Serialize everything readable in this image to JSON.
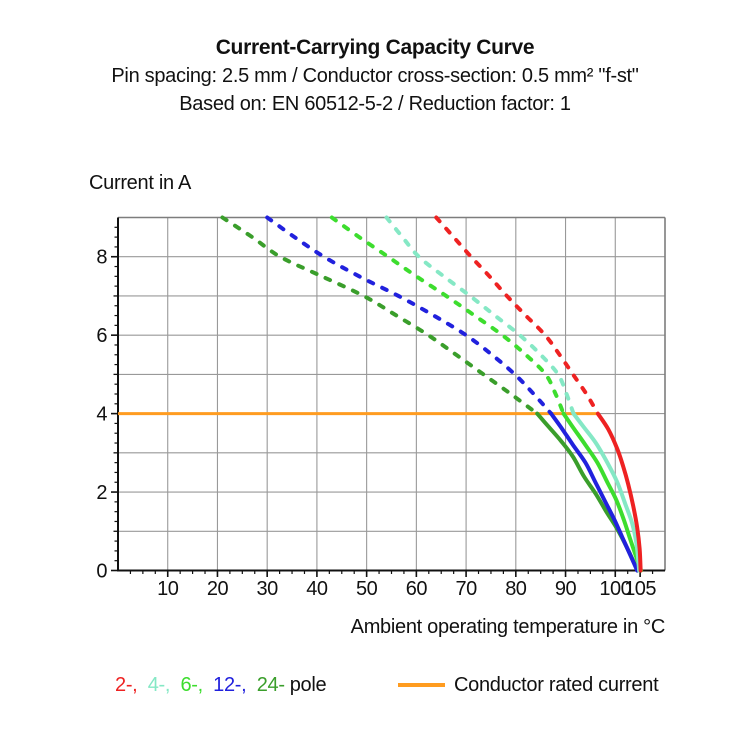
{
  "header": {
    "title": "Current-Carrying Capacity Curve",
    "subtitle1": "Pin spacing: 2.5 mm / Conductor cross-section: 0.5 mm² \"f-st\"",
    "subtitle2": "Based on: EN 60512-5-2 / Reduction factor: 1"
  },
  "axes": {
    "y_label": "Current in A",
    "x_label": "Ambient operating temperature in °C"
  },
  "legend": {
    "poles": [
      {
        "label": "2-,",
        "color": "#ee2222"
      },
      {
        "label": "4-,",
        "color": "#85e8c5"
      },
      {
        "label": "6-,",
        "color": "#3ddd2e"
      },
      {
        "label": "12-,",
        "color": "#2121dd"
      },
      {
        "label": "24-",
        "color": "#3a9e2b"
      }
    ],
    "poles_suffix": "pole",
    "rated_current_label": "Conductor rated current",
    "rated_current_color": "#ff9c20"
  },
  "chart_data": {
    "type": "line",
    "title": "Current-Carrying Capacity Curve",
    "xlabel": "Ambient operating temperature in °C",
    "ylabel": "Current in A",
    "x_range": [
      0,
      110
    ],
    "y_range": [
      0,
      9
    ],
    "grid": true,
    "x_gridlines": [
      10,
      20,
      30,
      40,
      50,
      60,
      70,
      80,
      90,
      100
    ],
    "x_ticks_labeled": [
      10,
      20,
      30,
      40,
      50,
      60,
      70,
      80,
      90,
      100,
      105
    ],
    "x_minor_tick_step": 2.5,
    "y_gridlines": [
      1,
      2,
      3,
      4,
      5,
      6,
      7,
      8
    ],
    "y_ticks_labeled": [
      0,
      2,
      4,
      6,
      8
    ],
    "y_minor_tick_step": 0.25,
    "rated_current_line": {
      "label": "Conductor rated current",
      "current_a": 4,
      "temp_start_c": 0,
      "temp_end_c": 96.5,
      "color": "#ff9c20"
    },
    "series": [
      {
        "name": "24-pole",
        "color": "#3a9e2b",
        "dashed_points": [
          [
            21,
            9
          ],
          [
            27,
            8.5
          ],
          [
            32.6,
            8
          ],
          [
            41,
            7.5
          ],
          [
            49.4,
            7
          ],
          [
            56,
            6.5
          ],
          [
            62.4,
            6
          ],
          [
            68,
            5.5
          ],
          [
            73.5,
            5
          ],
          [
            79,
            4.5
          ],
          [
            84.3,
            4
          ]
        ],
        "solid_points": [
          [
            84.3,
            4
          ],
          [
            86.7,
            3.65
          ],
          [
            89.1,
            3.3
          ],
          [
            91.5,
            2.9
          ],
          [
            93.7,
            2.4
          ],
          [
            96.1,
            1.95
          ],
          [
            98.2,
            1.5
          ],
          [
            100.2,
            1.1
          ],
          [
            101.9,
            0.7
          ],
          [
            103.3,
            0.33
          ],
          [
            104.5,
            0
          ]
        ]
      },
      {
        "name": "12-pole",
        "color": "#2121dd",
        "dashed_points": [
          [
            30,
            9
          ],
          [
            35.5,
            8.5
          ],
          [
            41.4,
            8
          ],
          [
            48.5,
            7.5
          ],
          [
            56.4,
            7
          ],
          [
            63.5,
            6.5
          ],
          [
            70,
            6
          ],
          [
            75.2,
            5.5
          ],
          [
            79.8,
            5
          ],
          [
            83.6,
            4.5
          ],
          [
            87.1,
            4
          ]
        ],
        "solid_points": [
          [
            87.1,
            4
          ],
          [
            89.1,
            3.65
          ],
          [
            91.5,
            3.2
          ],
          [
            94,
            2.75
          ],
          [
            96,
            2.25
          ],
          [
            98,
            1.75
          ],
          [
            99.8,
            1.3
          ],
          [
            101.4,
            0.85
          ],
          [
            103,
            0.4
          ],
          [
            104.4,
            0
          ]
        ]
      },
      {
        "name": "6-pole",
        "color": "#3ddd2e",
        "dashed_points": [
          [
            43,
            9
          ],
          [
            48.5,
            8.5
          ],
          [
            54.3,
            8
          ],
          [
            60,
            7.5
          ],
          [
            66,
            7
          ],
          [
            71.7,
            6.5
          ],
          [
            77.3,
            6
          ],
          [
            82,
            5.5
          ],
          [
            86,
            5
          ],
          [
            88,
            4.5
          ],
          [
            89.6,
            4
          ]
        ],
        "solid_points": [
          [
            89.6,
            4
          ],
          [
            91.5,
            3.65
          ],
          [
            94,
            3.2
          ],
          [
            96.4,
            2.75
          ],
          [
            98.4,
            2.25
          ],
          [
            100.2,
            1.8
          ],
          [
            101.7,
            1.3
          ],
          [
            103,
            0.8
          ],
          [
            104.2,
            0.35
          ],
          [
            105.2,
            0
          ]
        ]
      },
      {
        "name": "4-pole",
        "color": "#85e8c5",
        "dashed_points": [
          [
            54,
            9
          ],
          [
            57.2,
            8.5
          ],
          [
            60.5,
            8
          ],
          [
            65.5,
            7.5
          ],
          [
            70.8,
            7
          ],
          [
            75.8,
            6.5
          ],
          [
            80.8,
            6
          ],
          [
            85,
            5.5
          ],
          [
            88.5,
            5
          ],
          [
            90.2,
            4.5
          ],
          [
            91.6,
            4
          ]
        ],
        "solid_points": [
          [
            91.6,
            4
          ],
          [
            93.7,
            3.65
          ],
          [
            96.1,
            3.25
          ],
          [
            98.4,
            2.75
          ],
          [
            100.4,
            2.25
          ],
          [
            102,
            1.7
          ],
          [
            103.4,
            1.2
          ],
          [
            104.3,
            0.65
          ],
          [
            104.8,
            0
          ]
        ]
      },
      {
        "name": "2-pole",
        "color": "#ee2222",
        "dashed_points": [
          [
            64,
            9
          ],
          [
            67.5,
            8.5
          ],
          [
            71,
            8
          ],
          [
            74.7,
            7.5
          ],
          [
            78.2,
            7
          ],
          [
            82,
            6.5
          ],
          [
            85.9,
            6
          ],
          [
            88.8,
            5.5
          ],
          [
            91.5,
            5
          ],
          [
            94.2,
            4.5
          ],
          [
            96.5,
            4
          ]
        ],
        "solid_points": [
          [
            96.5,
            4
          ],
          [
            98.6,
            3.6
          ],
          [
            100.4,
            3.1
          ],
          [
            101.6,
            2.65
          ],
          [
            102.6,
            2.2
          ],
          [
            103.6,
            1.65
          ],
          [
            104.4,
            1.1
          ],
          [
            104.9,
            0.55
          ],
          [
            105.1,
            0
          ]
        ]
      }
    ]
  }
}
